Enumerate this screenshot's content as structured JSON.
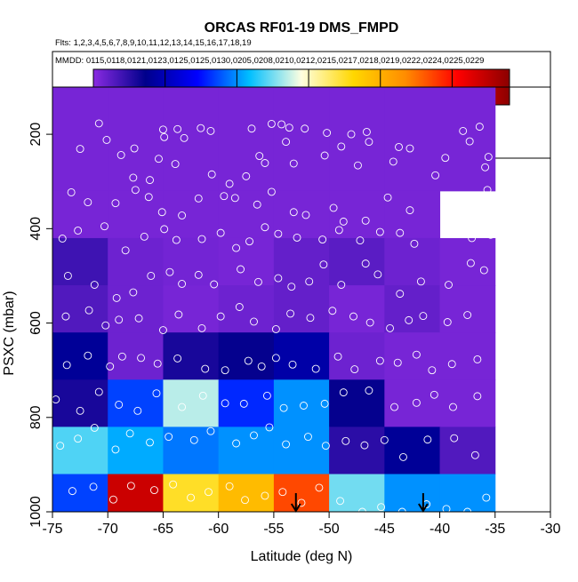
{
  "chart_data": {
    "type": "heatmap",
    "title": "ORCAS RF01-19 DMS_FMPD",
    "flights_note": "Flts: 1,2,3,4,5,6,7,8,9,10,11,12,13,14,15,16,17,18,19",
    "dates_note": "MMDD: 0115,0118,0121,0123,0125,0125,0130,0205,0208,0210,0212,0215,0217,0218,0219,0222,0224,0225,0229",
    "xlabel": "Latitude (deg N)",
    "ylabel": "PSXC (mbar)",
    "xlim": [
      -75,
      -30
    ],
    "ylim": [
      1000,
      100
    ],
    "x_ticks": [
      -75,
      -70,
      -65,
      -60,
      -55,
      -50,
      -45,
      -40,
      -35,
      -30
    ],
    "y_ticks": [
      200,
      400,
      600,
      800,
      1000
    ],
    "colorbar": {
      "range": [
        0,
        580
      ],
      "ticks": [
        100,
        200,
        300,
        400,
        500
      ],
      "colormap": [
        "#8a2be2",
        "#00008b",
        "#0000ff",
        "#00bfff",
        "#ffffe0",
        "#ffd700",
        "#ff8c00",
        "#ff0000",
        "#8b0000"
      ]
    },
    "columns_lat_edges": [
      -75,
      -70,
      -65,
      -60,
      -55,
      -50,
      -45,
      -40,
      -35
    ],
    "rows_pressure_edges": [
      100,
      320,
      420,
      520,
      620,
      720,
      820,
      920,
      1010
    ],
    "cells": [
      [
        10,
        10,
        10,
        10,
        10,
        10,
        10,
        10
      ],
      [
        10,
        10,
        10,
        10,
        10,
        10,
        10,
        null
      ],
      [
        40,
        15,
        12,
        10,
        20,
        25,
        15,
        10
      ],
      [
        30,
        15,
        10,
        15,
        20,
        10,
        20,
        10
      ],
      [
        80,
        15,
        60,
        70,
        90,
        15,
        10,
        10
      ],
      [
        60,
        170,
        270,
        160,
        200,
        70,
        10,
        10
      ],
      [
        240,
        210,
        190,
        200,
        200,
        50,
        80,
        30
      ],
      [
        170,
        540,
        350,
        390,
        470,
        250,
        200,
        200
      ]
    ],
    "arrows_lat": [
      -53,
      -41.5
    ],
    "points": [
      [
        -70.8,
        177
      ],
      [
        -70.1,
        212
      ],
      [
        -65,
        190
      ],
      [
        -64.9,
        206
      ],
      [
        -63.7,
        189
      ],
      [
        -63.1,
        208
      ],
      [
        -61.6,
        187
      ],
      [
        -60.7,
        193
      ],
      [
        -57,
        188
      ],
      [
        -55.2,
        178
      ],
      [
        -54.3,
        179
      ],
      [
        -53.9,
        216
      ],
      [
        -53.6,
        186
      ],
      [
        -52.2,
        188
      ],
      [
        -50.2,
        197
      ],
      [
        -48,
        200
      ],
      [
        -46.6,
        195
      ],
      [
        -46.4,
        216
      ],
      [
        -43.7,
        227
      ],
      [
        -37.9,
        193
      ],
      [
        -37.3,
        215
      ],
      [
        -36.4,
        184
      ],
      [
        -72.5,
        231
      ],
      [
        -68.8,
        244
      ],
      [
        -67.6,
        230
      ],
      [
        -67.7,
        292
      ],
      [
        -66.2,
        297
      ],
      [
        -65.4,
        252
      ],
      [
        -63.9,
        263
      ],
      [
        -60.6,
        285
      ],
      [
        -59,
        305
      ],
      [
        -57.5,
        289
      ],
      [
        -56.3,
        246
      ],
      [
        -55.8,
        261
      ],
      [
        -53.2,
        262
      ],
      [
        -50.4,
        245
      ],
      [
        -48.9,
        226
      ],
      [
        -47.4,
        266
      ],
      [
        -44.2,
        258
      ],
      [
        -42.7,
        230
      ],
      [
        -40.4,
        287
      ],
      [
        -39.5,
        250
      ],
      [
        -35.9,
        270
      ],
      [
        -35.6,
        248
      ],
      [
        -73.3,
        323
      ],
      [
        -71.8,
        344
      ],
      [
        -69.3,
        346
      ],
      [
        -67.5,
        318
      ],
      [
        -66.3,
        333
      ],
      [
        -65.1,
        365
      ],
      [
        -63.3,
        372
      ],
      [
        -61.8,
        336
      ],
      [
        -59.5,
        331
      ],
      [
        -58.5,
        335
      ],
      [
        -56.5,
        349
      ],
      [
        -55.2,
        322
      ],
      [
        -53.2,
        365
      ],
      [
        -52.1,
        371
      ],
      [
        -49.6,
        356
      ],
      [
        -48.7,
        385
      ],
      [
        -46.7,
        383
      ],
      [
        -44.7,
        334
      ],
      [
        -42.7,
        361
      ],
      [
        -39.5,
        395
      ],
      [
        -37,
        341
      ],
      [
        -35.7,
        318
      ],
      [
        -74.1,
        421
      ],
      [
        -72.7,
        404
      ],
      [
        -70.3,
        395
      ],
      [
        -68.4,
        446
      ],
      [
        -66.7,
        417
      ],
      [
        -64.9,
        401
      ],
      [
        -63.8,
        424
      ],
      [
        -61.5,
        422
      ],
      [
        -59.8,
        409
      ],
      [
        -58.4,
        441
      ],
      [
        -57.2,
        427
      ],
      [
        -55.8,
        397
      ],
      [
        -54.6,
        411
      ],
      [
        -52.9,
        419
      ],
      [
        -50.6,
        423
      ],
      [
        -49.1,
        403
      ],
      [
        -47.2,
        425
      ],
      [
        -45.4,
        407
      ],
      [
        -43.6,
        409
      ],
      [
        -42.3,
        432
      ],
      [
        -39.3,
        402
      ],
      [
        -37.1,
        420
      ],
      [
        -35.4,
        413
      ],
      [
        -73.6,
        500
      ],
      [
        -71.2,
        519
      ],
      [
        -69.2,
        547
      ],
      [
        -67.7,
        535
      ],
      [
        -66.1,
        500
      ],
      [
        -64.4,
        492
      ],
      [
        -63.3,
        517
      ],
      [
        -61.8,
        498
      ],
      [
        -60.4,
        518
      ],
      [
        -58,
        486
      ],
      [
        -56.4,
        513
      ],
      [
        -54.6,
        505
      ],
      [
        -53.4,
        523
      ],
      [
        -51.8,
        512
      ],
      [
        -50.5,
        476
      ],
      [
        -48.9,
        519
      ],
      [
        -46.7,
        474
      ],
      [
        -45.6,
        497
      ],
      [
        -43.6,
        538
      ],
      [
        -41.7,
        512
      ],
      [
        -39.2,
        519
      ],
      [
        -37.2,
        473
      ],
      [
        -36,
        488
      ],
      [
        -73.8,
        586
      ],
      [
        -71.7,
        573
      ],
      [
        -70.2,
        605
      ],
      [
        -69,
        593
      ],
      [
        -67.2,
        590
      ],
      [
        -65,
        615
      ],
      [
        -63.6,
        582
      ],
      [
        -61.5,
        611
      ],
      [
        -59.8,
        586
      ],
      [
        -58.1,
        566
      ],
      [
        -56.8,
        597
      ],
      [
        -54.8,
        613
      ],
      [
        -53.5,
        580
      ],
      [
        -51.7,
        589
      ],
      [
        -49.7,
        574
      ],
      [
        -47.8,
        586
      ],
      [
        -46.3,
        599
      ],
      [
        -44.5,
        611
      ],
      [
        -42.8,
        594
      ],
      [
        -41.5,
        585
      ],
      [
        -39.3,
        598
      ],
      [
        -37.5,
        583
      ],
      [
        -73.7,
        689
      ],
      [
        -71.8,
        669
      ],
      [
        -69.8,
        692
      ],
      [
        -68.7,
        671
      ],
      [
        -67,
        674
      ],
      [
        -65.5,
        686
      ],
      [
        -63.7,
        675
      ],
      [
        -61.2,
        697
      ],
      [
        -59.4,
        700
      ],
      [
        -57.3,
        680
      ],
      [
        -56.1,
        692
      ],
      [
        -54.8,
        674
      ],
      [
        -53.3,
        688
      ],
      [
        -51.2,
        697
      ],
      [
        -49.2,
        671
      ],
      [
        -47.7,
        698
      ],
      [
        -45.4,
        680
      ],
      [
        -43.8,
        684
      ],
      [
        -42.1,
        667
      ],
      [
        -40.7,
        700
      ],
      [
        -38.9,
        687
      ],
      [
        -36.6,
        677
      ],
      [
        -74.7,
        762
      ],
      [
        -72.5,
        786
      ],
      [
        -70.8,
        746
      ],
      [
        -69,
        773
      ],
      [
        -67.3,
        786
      ],
      [
        -65.6,
        749
      ],
      [
        -63.3,
        778
      ],
      [
        -61.4,
        754
      ],
      [
        -59.4,
        770
      ],
      [
        -57.7,
        771
      ],
      [
        -55.6,
        754
      ],
      [
        -54.1,
        780
      ],
      [
        -52.3,
        775
      ],
      [
        -50.4,
        771
      ],
      [
        -48.7,
        747
      ],
      [
        -46.4,
        743
      ],
      [
        -44.1,
        778
      ],
      [
        -42.1,
        769
      ],
      [
        -40.5,
        752
      ],
      [
        -38.8,
        778
      ],
      [
        -36.6,
        755
      ],
      [
        -74.3,
        860
      ],
      [
        -72.7,
        845
      ],
      [
        -71.2,
        822
      ],
      [
        -69.3,
        868
      ],
      [
        -68,
        834
      ],
      [
        -66.2,
        853
      ],
      [
        -64.5,
        841
      ],
      [
        -62.2,
        848
      ],
      [
        -60.7,
        829
      ],
      [
        -58.4,
        855
      ],
      [
        -56.8,
        838
      ],
      [
        -55.4,
        821
      ],
      [
        -53.9,
        857
      ],
      [
        -51.9,
        841
      ],
      [
        -50.3,
        860
      ],
      [
        -48.5,
        850
      ],
      [
        -46.8,
        859
      ],
      [
        -45,
        848
      ],
      [
        -43.3,
        884
      ],
      [
        -41.1,
        847
      ],
      [
        -38.7,
        844
      ],
      [
        -36.8,
        880
      ],
      [
        -73.2,
        956
      ],
      [
        -71.3,
        947
      ],
      [
        -69.5,
        974
      ],
      [
        -67.9,
        945
      ],
      [
        -65.8,
        954
      ],
      [
        -64.1,
        942
      ],
      [
        -62.5,
        970
      ],
      [
        -60.9,
        958
      ],
      [
        -59,
        946
      ],
      [
        -57.6,
        975
      ],
      [
        -55.8,
        966
      ],
      [
        -54.2,
        958
      ],
      [
        -52.5,
        981
      ],
      [
        -50.9,
        949
      ],
      [
        -49,
        977
      ],
      [
        -47,
        1000
      ],
      [
        -45.3,
        990
      ],
      [
        -43.4,
        1000
      ],
      [
        -41.2,
        984
      ],
      [
        -39.4,
        994
      ],
      [
        -37.5,
        1000
      ],
      [
        -35.8,
        970
      ]
    ]
  }
}
